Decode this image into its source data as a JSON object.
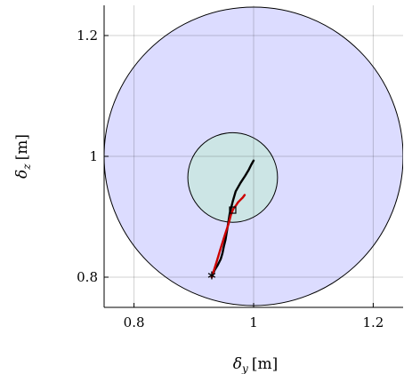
{
  "chart_data": {
    "type": "scatter",
    "xlabel_symbol": "δ",
    "xlabel_subscript": "y",
    "xlabel_unit": "[m]",
    "ylabel_symbol": "δ",
    "ylabel_subscript": "z",
    "ylabel_unit": "[m]",
    "xlim": [
      0.75,
      1.25
    ],
    "ylim": [
      0.75,
      1.25
    ],
    "xticks": [
      0.8,
      1.0,
      1.2
    ],
    "yticks": [
      0.8,
      1.0,
      1.2
    ],
    "xtick_labels": [
      "0.8",
      "1",
      "1.2"
    ],
    "ytick_labels": [
      "0.8",
      "1",
      "1.2"
    ],
    "grid": true,
    "regions": [
      {
        "shape": "circle",
        "center": [
          1.0,
          1.0
        ],
        "radius": 0.25,
        "fill": "#dcdcff",
        "stroke": "#000000"
      },
      {
        "shape": "circle",
        "center": [
          0.965,
          0.965
        ],
        "radius": 0.075,
        "fill": "#cce5e5",
        "stroke": "#000000"
      }
    ],
    "series": [
      {
        "color": "#000000",
        "x": [
          0.93,
          0.935,
          0.94,
          0.945,
          0.948,
          0.95,
          0.953,
          0.956,
          0.96,
          0.965,
          0.97,
          0.978,
          0.986,
          0.992,
          0.996,
          1.0
        ],
        "y": [
          0.8,
          0.812,
          0.82,
          0.83,
          0.84,
          0.85,
          0.862,
          0.88,
          0.905,
          0.925,
          0.942,
          0.956,
          0.968,
          0.978,
          0.986,
          0.993
        ]
      },
      {
        "color": "#cc0000",
        "x": [
          0.93,
          0.938,
          0.945,
          0.952,
          0.958,
          0.962,
          0.966,
          0.97,
          0.974,
          0.978,
          0.982,
          0.985
        ],
        "y": [
          0.8,
          0.825,
          0.848,
          0.87,
          0.888,
          0.903,
          0.913,
          0.918,
          0.924,
          0.928,
          0.932,
          0.936
        ]
      }
    ],
    "markers": [
      {
        "symbol": "star",
        "x": 0.93,
        "y": 0.803
      },
      {
        "symbol": "square",
        "x": 0.965,
        "y": 0.911
      }
    ]
  }
}
